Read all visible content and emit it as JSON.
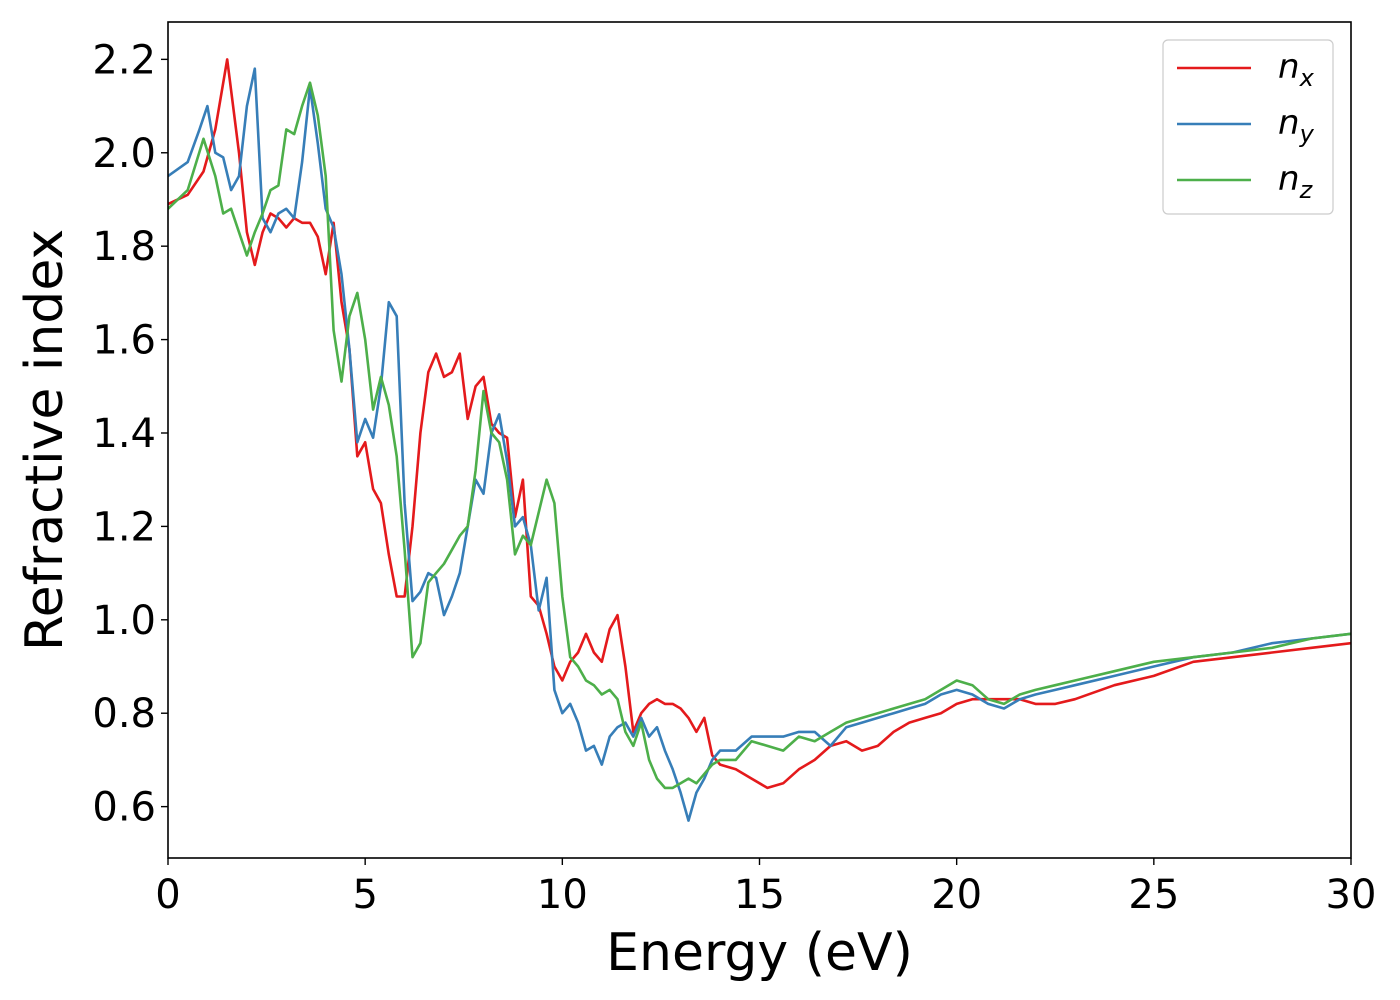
{
  "chart_data": {
    "type": "line",
    "title": "",
    "xlabel": "Energy (eV)",
    "ylabel": "Refractive index",
    "xlim": [
      0,
      30
    ],
    "ylim": [
      0.49,
      2.28
    ],
    "xticks": [
      0,
      5,
      10,
      15,
      20,
      25,
      30
    ],
    "xtick_labels": [
      "0",
      "5",
      "10",
      "15",
      "20",
      "25",
      "30"
    ],
    "yticks": [
      0.6,
      0.8,
      1.0,
      1.2,
      1.4,
      1.6,
      1.8,
      2.0,
      2.2
    ],
    "ytick_labels": [
      "0.6",
      "0.8",
      "1.0",
      "1.2",
      "1.4",
      "1.6",
      "1.8",
      "2.0",
      "2.2"
    ],
    "grid": false,
    "legend_position": "top-right",
    "series": [
      {
        "name": "n_x",
        "legend_main": "n",
        "legend_sub": "x",
        "color": "#e41a1c",
        "x": [
          0,
          0.5,
          0.9,
          1.2,
          1.5,
          1.8,
          2.0,
          2.2,
          2.4,
          2.6,
          2.8,
          3.0,
          3.2,
          3.4,
          3.6,
          3.8,
          4.0,
          4.2,
          4.4,
          4.6,
          4.8,
          5.0,
          5.2,
          5.4,
          5.6,
          5.8,
          6.0,
          6.2,
          6.4,
          6.6,
          6.8,
          7.0,
          7.2,
          7.4,
          7.6,
          7.8,
          8.0,
          8.2,
          8.4,
          8.6,
          8.8,
          9.0,
          9.2,
          9.4,
          9.6,
          9.8,
          10.0,
          10.2,
          10.4,
          10.6,
          10.8,
          11.0,
          11.2,
          11.4,
          11.6,
          11.8,
          12.0,
          12.2,
          12.4,
          12.6,
          12.8,
          13.0,
          13.2,
          13.4,
          13.6,
          13.8,
          14.0,
          14.4,
          14.8,
          15.2,
          15.6,
          16.0,
          16.4,
          16.8,
          17.2,
          17.6,
          18.0,
          18.4,
          18.8,
          19.2,
          19.6,
          20.0,
          20.4,
          20.8,
          21.2,
          21.6,
          22.0,
          22.5,
          23.0,
          24.0,
          25.0,
          26.0,
          27.0,
          28.0,
          29.0,
          30.0
        ],
        "y": [
          1.89,
          1.91,
          1.96,
          2.05,
          2.2,
          2.0,
          1.83,
          1.76,
          1.83,
          1.87,
          1.86,
          1.84,
          1.86,
          1.85,
          1.85,
          1.82,
          1.74,
          1.85,
          1.68,
          1.58,
          1.35,
          1.38,
          1.28,
          1.25,
          1.14,
          1.05,
          1.05,
          1.2,
          1.4,
          1.53,
          1.57,
          1.52,
          1.53,
          1.57,
          1.43,
          1.5,
          1.52,
          1.42,
          1.4,
          1.39,
          1.22,
          1.3,
          1.05,
          1.03,
          0.97,
          0.9,
          0.87,
          0.91,
          0.93,
          0.97,
          0.93,
          0.91,
          0.98,
          1.01,
          0.9,
          0.76,
          0.8,
          0.82,
          0.83,
          0.82,
          0.82,
          0.81,
          0.79,
          0.76,
          0.79,
          0.71,
          0.69,
          0.68,
          0.66,
          0.64,
          0.65,
          0.68,
          0.7,
          0.73,
          0.74,
          0.72,
          0.73,
          0.76,
          0.78,
          0.79,
          0.8,
          0.82,
          0.83,
          0.83,
          0.83,
          0.83,
          0.82,
          0.82,
          0.83,
          0.86,
          0.88,
          0.91,
          0.92,
          0.93,
          0.94,
          0.95
        ]
      },
      {
        "name": "n_y",
        "legend_main": "n",
        "legend_sub": "y",
        "color": "#377eb8",
        "x": [
          0,
          0.5,
          0.8,
          1.0,
          1.2,
          1.4,
          1.6,
          1.8,
          2.0,
          2.2,
          2.4,
          2.6,
          2.8,
          3.0,
          3.2,
          3.4,
          3.6,
          3.8,
          4.0,
          4.2,
          4.4,
          4.6,
          4.8,
          5.0,
          5.2,
          5.4,
          5.6,
          5.8,
          6.0,
          6.2,
          6.4,
          6.6,
          6.8,
          7.0,
          7.2,
          7.4,
          7.6,
          7.8,
          8.0,
          8.2,
          8.4,
          8.6,
          8.8,
          9.0,
          9.2,
          9.4,
          9.6,
          9.8,
          10.0,
          10.2,
          10.4,
          10.6,
          10.8,
          11.0,
          11.2,
          11.4,
          11.6,
          11.8,
          12.0,
          12.2,
          12.4,
          12.6,
          12.8,
          13.0,
          13.2,
          13.4,
          13.6,
          13.8,
          14.0,
          14.4,
          14.8,
          15.2,
          15.6,
          16.0,
          16.4,
          16.8,
          17.2,
          17.6,
          18.0,
          18.4,
          18.8,
          19.2,
          19.6,
          20.0,
          20.4,
          20.8,
          21.2,
          21.6,
          22.0,
          22.5,
          23.0,
          24.0,
          25.0,
          26.0,
          27.0,
          28.0,
          29.0,
          30.0
        ],
        "y": [
          1.95,
          1.98,
          2.05,
          2.1,
          2.0,
          1.99,
          1.92,
          1.95,
          2.1,
          2.18,
          1.86,
          1.83,
          1.87,
          1.88,
          1.86,
          1.98,
          2.14,
          2.02,
          1.88,
          1.84,
          1.74,
          1.58,
          1.38,
          1.43,
          1.39,
          1.5,
          1.68,
          1.65,
          1.25,
          1.04,
          1.06,
          1.1,
          1.09,
          1.01,
          1.05,
          1.1,
          1.2,
          1.3,
          1.27,
          1.4,
          1.44,
          1.34,
          1.2,
          1.22,
          1.16,
          1.02,
          1.09,
          0.85,
          0.8,
          0.82,
          0.78,
          0.72,
          0.73,
          0.69,
          0.75,
          0.77,
          0.78,
          0.75,
          0.79,
          0.75,
          0.77,
          0.72,
          0.68,
          0.63,
          0.57,
          0.63,
          0.66,
          0.7,
          0.72,
          0.72,
          0.75,
          0.75,
          0.75,
          0.76,
          0.76,
          0.73,
          0.77,
          0.78,
          0.79,
          0.8,
          0.81,
          0.82,
          0.84,
          0.85,
          0.84,
          0.82,
          0.81,
          0.83,
          0.84,
          0.85,
          0.86,
          0.88,
          0.9,
          0.92,
          0.93,
          0.95,
          0.96,
          0.97
        ]
      },
      {
        "name": "n_z",
        "legend_main": "n",
        "legend_sub": "z",
        "color": "#4daf4a",
        "x": [
          0,
          0.5,
          0.9,
          1.2,
          1.4,
          1.6,
          1.8,
          2.0,
          2.2,
          2.4,
          2.6,
          2.8,
          3.0,
          3.2,
          3.4,
          3.6,
          3.8,
          4.0,
          4.2,
          4.4,
          4.6,
          4.8,
          5.0,
          5.2,
          5.4,
          5.6,
          5.8,
          6.0,
          6.2,
          6.4,
          6.6,
          6.8,
          7.0,
          7.2,
          7.4,
          7.6,
          7.8,
          8.0,
          8.2,
          8.4,
          8.6,
          8.8,
          9.0,
          9.2,
          9.4,
          9.6,
          9.8,
          10.0,
          10.2,
          10.4,
          10.6,
          10.8,
          11.0,
          11.2,
          11.4,
          11.6,
          11.8,
          12.0,
          12.2,
          12.4,
          12.6,
          12.8,
          13.0,
          13.2,
          13.4,
          13.6,
          13.8,
          14.0,
          14.4,
          14.8,
          15.2,
          15.6,
          16.0,
          16.4,
          16.8,
          17.2,
          17.6,
          18.0,
          18.4,
          18.8,
          19.2,
          19.6,
          20.0,
          20.4,
          20.8,
          21.2,
          21.6,
          22.0,
          22.5,
          23.0,
          24.0,
          25.0,
          26.0,
          27.0,
          28.0,
          29.0,
          30.0
        ],
        "y": [
          1.88,
          1.92,
          2.03,
          1.95,
          1.87,
          1.88,
          1.83,
          1.78,
          1.83,
          1.87,
          1.92,
          1.93,
          2.05,
          2.04,
          2.1,
          2.15,
          2.08,
          1.95,
          1.62,
          1.51,
          1.65,
          1.7,
          1.6,
          1.45,
          1.52,
          1.46,
          1.35,
          1.15,
          0.92,
          0.95,
          1.08,
          1.1,
          1.12,
          1.15,
          1.18,
          1.2,
          1.32,
          1.49,
          1.4,
          1.38,
          1.3,
          1.14,
          1.18,
          1.16,
          1.23,
          1.3,
          1.25,
          1.05,
          0.92,
          0.9,
          0.87,
          0.86,
          0.84,
          0.85,
          0.83,
          0.76,
          0.73,
          0.78,
          0.7,
          0.66,
          0.64,
          0.64,
          0.65,
          0.66,
          0.65,
          0.67,
          0.69,
          0.7,
          0.7,
          0.74,
          0.73,
          0.72,
          0.75,
          0.74,
          0.76,
          0.78,
          0.79,
          0.8,
          0.81,
          0.82,
          0.83,
          0.85,
          0.87,
          0.86,
          0.83,
          0.82,
          0.84,
          0.85,
          0.86,
          0.87,
          0.89,
          0.91,
          0.92,
          0.93,
          0.94,
          0.96,
          0.97
        ]
      }
    ]
  }
}
